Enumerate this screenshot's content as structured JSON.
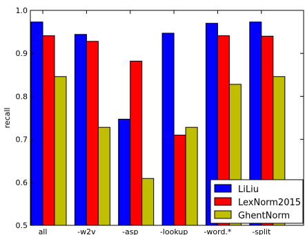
{
  "chart_data": {
    "type": "bar",
    "categories": [
      "all",
      "-w2v",
      "-asp",
      "-lookup",
      "-word.*",
      "-split"
    ],
    "series": [
      {
        "name": "LiLiu",
        "color": "#0000ff",
        "values": [
          0.973,
          0.944,
          0.747,
          0.947,
          0.97,
          0.973
        ]
      },
      {
        "name": "LexNorm2015",
        "color": "#ff0000",
        "values": [
          0.941,
          0.928,
          0.882,
          0.71,
          0.941,
          0.94
        ]
      },
      {
        "name": "GhentNorm",
        "color": "#bfbf00",
        "values": [
          0.846,
          0.728,
          0.609,
          0.728,
          0.828,
          0.846
        ]
      }
    ],
    "ylabel": "recall",
    "xlabel": "",
    "ylim": [
      0.5,
      1.0
    ],
    "yticks": [
      "0.5",
      "0.6",
      "0.7",
      "0.8",
      "0.9",
      "1.0"
    ],
    "legend_placement": "lower-right",
    "grid": false
  }
}
